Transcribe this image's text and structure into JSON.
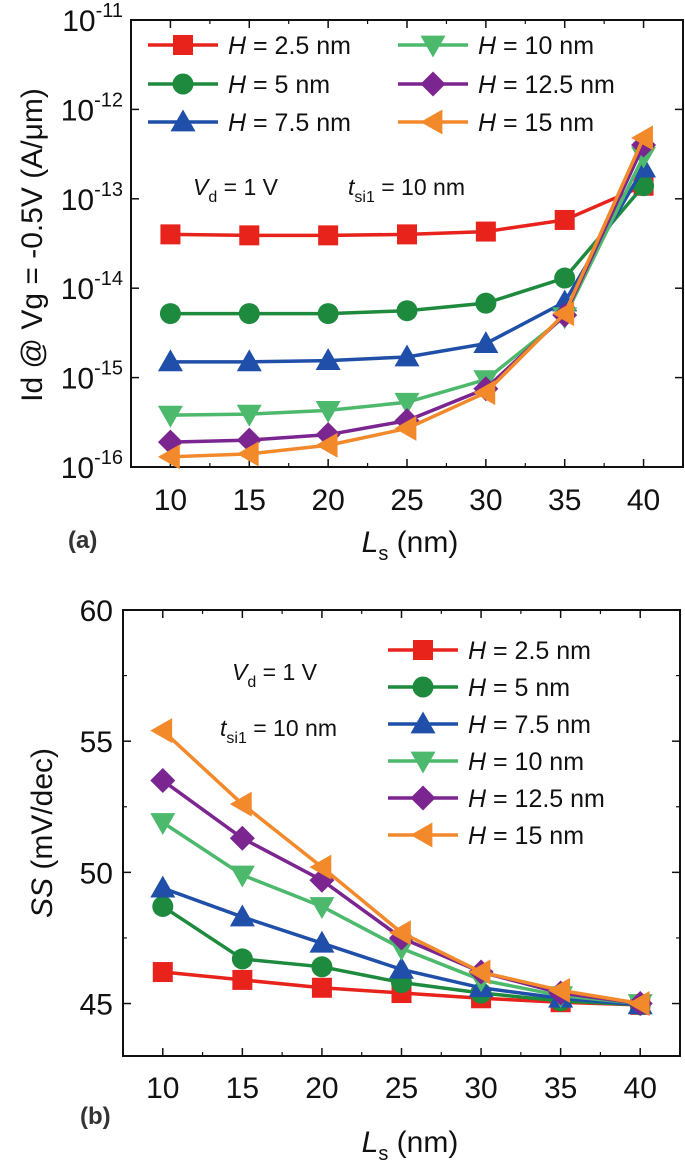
{
  "chart_data": [
    {
      "type": "line",
      "panel_label": "(a)",
      "xlabel_main": "L",
      "xlabel_sub": "s",
      "xlabel_unit": " (nm)",
      "ylabel": "Id @ Vg = -0.5V (A/μm)",
      "yscale": "log",
      "x": [
        10,
        15,
        20,
        25,
        30,
        35,
        40
      ],
      "xlim": [
        7.5,
        42.5
      ],
      "ylim": [
        1e-16,
        1e-11
      ],
      "xticks": [
        "10",
        "15",
        "20",
        "25",
        "30",
        "35",
        "40"
      ],
      "yticks": [
        {
          "base": "10",
          "exp": "-11"
        },
        {
          "base": "10",
          "exp": "-12"
        },
        {
          "base": "10",
          "exp": "-13"
        },
        {
          "base": "10",
          "exp": "-14"
        },
        {
          "base": "10",
          "exp": "-15"
        },
        {
          "base": "10",
          "exp": "-16"
        }
      ],
      "legend_placement": "top-left, two columns",
      "annotations": [
        {
          "main": "V",
          "sub": "d",
          "rest": " = 1 V"
        },
        {
          "main": "t",
          "sub": "si1",
          "rest": " = 10 nm"
        }
      ],
      "series": [
        {
          "name": "H = 2.5 nm",
          "label_var": "H",
          "label_rest": " = 2.5 nm",
          "color": "#e8231c",
          "marker": "square",
          "values": [
            4e-14,
            3.9e-14,
            3.9e-14,
            4e-14,
            4.3e-14,
            5.8e-14,
            1.4e-13
          ]
        },
        {
          "name": "H = 5 nm",
          "label_var": "H",
          "label_rest": " = 5 nm",
          "color": "#1e8a3e",
          "marker": "circle",
          "values": [
            5.2e-15,
            5.2e-15,
            5.2e-15,
            5.6e-15,
            6.8e-15,
            1.3e-14,
            1.4e-13
          ]
        },
        {
          "name": "H = 7.5 nm",
          "label_var": "H",
          "label_rest": " = 7.5 nm",
          "color": "#1f4fa8",
          "marker": "triangle-up",
          "values": [
            1.5e-15,
            1.5e-15,
            1.55e-15,
            1.7e-15,
            2.4e-15,
            7e-15,
            2.2e-13
          ]
        },
        {
          "name": "H = 10 nm",
          "label_var": "H",
          "label_rest": " = 10 nm",
          "color": "#4cb96c",
          "marker": "triangle-down",
          "values": [
            3.8e-16,
            3.9e-16,
            4.3e-16,
            5.3e-16,
            9.5e-16,
            4.8e-15,
            3e-13
          ]
        },
        {
          "name": "H = 12.5 nm",
          "label_var": "H",
          "label_rest": " = 12.5 nm",
          "color": "#7b2590",
          "marker": "diamond",
          "values": [
            1.9e-16,
            2e-16,
            2.3e-16,
            3.3e-16,
            7.5e-16,
            5e-15,
            4e-13
          ]
        },
        {
          "name": "H = 15 nm",
          "label_var": "H",
          "label_rest": " = 15 nm",
          "color": "#f2892b",
          "marker": "triangle-left",
          "values": [
            1.3e-16,
            1.4e-16,
            1.75e-16,
            2.7e-16,
            6.8e-16,
            5.2e-15,
            4.8e-13
          ]
        }
      ]
    },
    {
      "type": "line",
      "panel_label": "(b)",
      "xlabel_main": "L",
      "xlabel_sub": "s",
      "xlabel_unit": " (nm)",
      "ylabel_var": "SS",
      "ylabel_unit": " (mV/dec)",
      "yscale": "linear",
      "x": [
        10,
        15,
        20,
        25,
        30,
        35,
        40
      ],
      "xlim": [
        7.5,
        42.5
      ],
      "ylim": [
        43,
        60
      ],
      "xticks": [
        "10",
        "15",
        "20",
        "25",
        "30",
        "35",
        "40"
      ],
      "yticks": [
        "45",
        "50",
        "55",
        "60"
      ],
      "legend_placement": "top-right, one column",
      "annotations": [
        {
          "main": "V",
          "sub": "d",
          "rest": " = 1 V"
        },
        {
          "main": "t",
          "sub": "si1",
          "rest": " = 10 nm"
        }
      ],
      "series": [
        {
          "name": "H = 2.5 nm",
          "label_var": "H",
          "label_rest": " = 2.5 nm",
          "color": "#e8231c",
          "marker": "square",
          "values": [
            46.2,
            45.9,
            45.6,
            45.4,
            45.2,
            45.05,
            44.95
          ]
        },
        {
          "name": "H = 5 nm",
          "label_var": "H",
          "label_rest": " = 5 nm",
          "color": "#1e8a3e",
          "marker": "circle",
          "values": [
            48.7,
            46.7,
            46.4,
            45.8,
            45.4,
            45.1,
            44.95
          ]
        },
        {
          "name": "H = 7.5 nm",
          "label_var": "H",
          "label_rest": " = 7.5 nm",
          "color": "#1f4fa8",
          "marker": "triangle-up",
          "values": [
            49.4,
            48.3,
            47.3,
            46.3,
            45.6,
            45.2,
            44.95
          ]
        },
        {
          "name": "H = 10 nm",
          "label_var": "H",
          "label_rest": " = 10 nm",
          "color": "#4cb96c",
          "marker": "triangle-down",
          "values": [
            51.9,
            49.9,
            48.7,
            47.1,
            45.9,
            45.3,
            45.0
          ]
        },
        {
          "name": "H = 12.5 nm",
          "label_var": "H",
          "label_rest": " = 12.5 nm",
          "color": "#7b2590",
          "marker": "diamond",
          "values": [
            53.5,
            51.3,
            49.7,
            47.5,
            46.2,
            45.4,
            45.0
          ]
        },
        {
          "name": "H = 15 nm",
          "label_var": "H",
          "label_rest": " = 15 nm",
          "color": "#f2892b",
          "marker": "triangle-left",
          "values": [
            55.4,
            52.6,
            50.2,
            47.7,
            46.2,
            45.5,
            45.0
          ]
        }
      ]
    }
  ]
}
